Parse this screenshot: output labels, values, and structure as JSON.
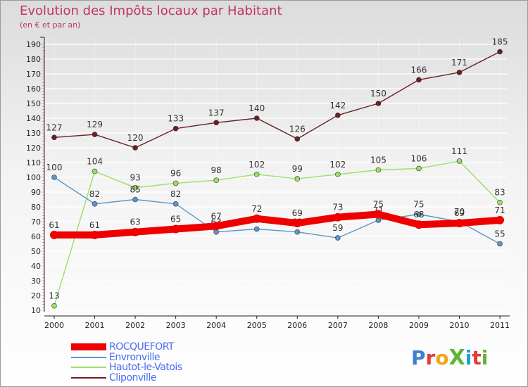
{
  "title": "Evolution des Impôts locaux par Habitant",
  "subtitle": "(en € et par an)",
  "logo": {
    "text": "ProXiti",
    "colors": [
      "#3a7fd5",
      "#e23b3b",
      "#f2a618",
      "#5db535",
      "#1e9ed8",
      "#e23b3b",
      "#5db535"
    ]
  },
  "chart_data": {
    "type": "line",
    "x": [
      "2000",
      "2001",
      "2002",
      "2003",
      "2004",
      "2005",
      "2006",
      "2007",
      "2008",
      "2009",
      "2010",
      "2011"
    ],
    "yticks": [
      10,
      20,
      30,
      40,
      50,
      60,
      70,
      80,
      90,
      100,
      110,
      120,
      130,
      140,
      150,
      160,
      170,
      180,
      190
    ],
    "ylim": [
      10,
      190
    ],
    "series": [
      {
        "name": "Cliponville",
        "color": "#6e1d24",
        "values": [
          127,
          129,
          120,
          133,
          137,
          140,
          126,
          142,
          150,
          166,
          171,
          185
        ],
        "labels": [
          "127",
          "129",
          "120",
          "133",
          "137",
          "140",
          "126",
          "142",
          "150",
          "166",
          "171",
          "185"
        ]
      },
      {
        "name": "Hautot-le-Vatois",
        "color": "#9be066",
        "values": [
          13,
          104,
          93,
          96,
          98,
          102,
          99,
          102,
          105,
          106,
          111,
          83
        ],
        "labels": [
          "13",
          "104",
          "93",
          "96",
          "98",
          "102",
          "99",
          "102",
          "105",
          "106",
          "111",
          "83"
        ]
      },
      {
        "name": "Envronville",
        "color": "#5b96cc",
        "values": [
          100,
          82,
          85,
          82,
          63,
          65,
          63,
          59,
          71,
          75,
          70,
          55
        ],
        "labels": [
          "100",
          "82",
          "85",
          "82",
          "63",
          "65",
          "63",
          "59",
          "71",
          "75",
          "70",
          "55"
        ]
      },
      {
        "name": "ROCQUEFORT",
        "color": "#ee0000",
        "values": [
          61,
          61,
          63,
          65,
          67,
          72,
          69,
          73,
          75,
          68,
          69,
          71
        ],
        "labels": [
          "61",
          "61",
          "63",
          "65",
          "67",
          "72",
          "69",
          "73",
          "75",
          "68",
          "69",
          "71"
        ]
      }
    ],
    "legend": [
      "ROCQUEFORT",
      "Envronville",
      "Hautot-le-Vatois",
      "Cliponville"
    ]
  }
}
